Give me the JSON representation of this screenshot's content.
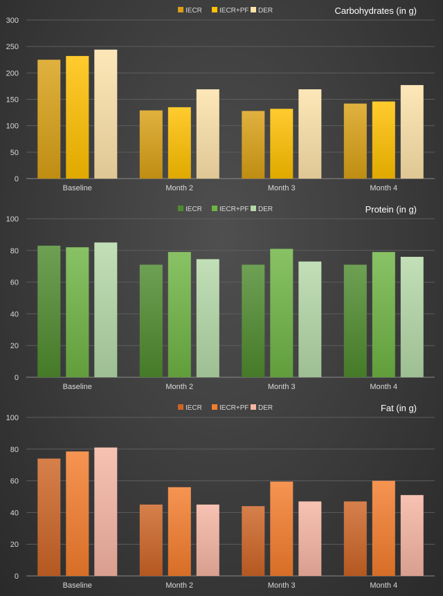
{
  "colors": {
    "carbs": [
      "#d9a015",
      "#ffc000",
      "#fde2a9"
    ],
    "protein": [
      "#4e8b2e",
      "#6eb443",
      "#b4d8a7"
    ],
    "fat": [
      "#cd6425",
      "#f47d2c",
      "#f5b5a2"
    ]
  },
  "chart_data": [
    {
      "type": "bar",
      "title": "Carbohydrates (in g)",
      "categories": [
        "Baseline",
        "Month 2",
        "Month 3",
        "Month 4"
      ],
      "series": [
        {
          "name": "IECR",
          "values": [
            225,
            129,
            128,
            142
          ]
        },
        {
          "name": "IECR+PF",
          "values": [
            232,
            135,
            132,
            146
          ]
        },
        {
          "name": "DER",
          "values": [
            244,
            169,
            169,
            177
          ]
        }
      ],
      "yticks": [
        0,
        50,
        100,
        150,
        200,
        250,
        300
      ],
      "ylim": [
        0,
        300
      ],
      "xlabel": "",
      "ylabel": "",
      "grid": true,
      "legend": "top-center"
    },
    {
      "type": "bar",
      "title": "Protein (in g)",
      "categories": [
        "Baseline",
        "Month 2",
        "Month 3",
        "Month 4"
      ],
      "series": [
        {
          "name": "IECR",
          "values": [
            83,
            71,
            71,
            71
          ]
        },
        {
          "name": "IECR+PF",
          "values": [
            82,
            79,
            81,
            79
          ]
        },
        {
          "name": "DER",
          "values": [
            85,
            74.5,
            73,
            76
          ]
        }
      ],
      "yticks": [
        0,
        20,
        40,
        60,
        80,
        100
      ],
      "ylim": [
        0,
        100
      ],
      "xlabel": "",
      "ylabel": "",
      "grid": true,
      "legend": "top-center"
    },
    {
      "type": "bar",
      "title": "Fat (in g)",
      "categories": [
        "Baseline",
        "Month 2",
        "Month 3",
        "Month 4"
      ],
      "series": [
        {
          "name": "IECR",
          "values": [
            74,
            45,
            44,
            47
          ]
        },
        {
          "name": "IECR+PF",
          "values": [
            78.5,
            56,
            59.5,
            60
          ]
        },
        {
          "name": "DER",
          "values": [
            81,
            45,
            47,
            51
          ]
        }
      ],
      "yticks": [
        0,
        20,
        40,
        60,
        80,
        100
      ],
      "ylim": [
        0,
        100
      ],
      "xlabel": "",
      "ylabel": "",
      "grid": true,
      "legend": "top-center"
    }
  ]
}
